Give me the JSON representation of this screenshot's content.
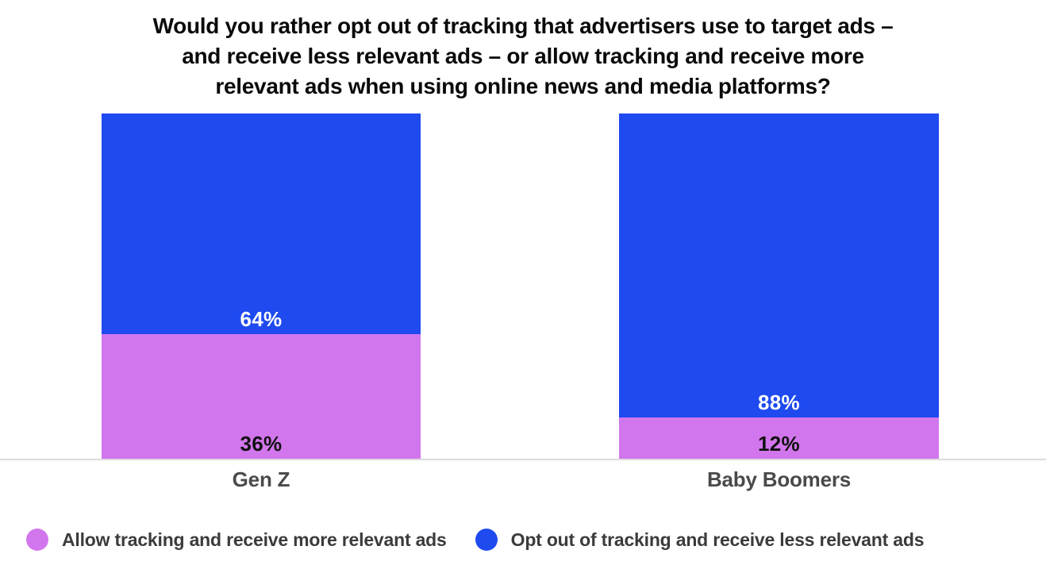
{
  "title": {
    "text": "Would you rather opt out of tracking that advertisers use to target ads – and receive less relevant ads – or allow tracking and receive more relevant ads when using online news and media platforms?",
    "lines": [
      "Would you rather opt out of tracking that advertisers use to target ads –",
      "and receive less relevant ads – or allow tracking and receive more",
      "relevant ads when using online news and media platforms?"
    ]
  },
  "chart_data": {
    "type": "bar",
    "stacked": true,
    "orientation": "vertical",
    "categories": [
      "Gen Z",
      "Baby Boomers"
    ],
    "series": [
      {
        "name": "Opt out of tracking and receive less relevant ads",
        "color": "#1E4AEF",
        "label_color": "#FFFFFF",
        "values": [
          64,
          88
        ]
      },
      {
        "name": "Allow tracking and receive more relevant ads",
        "color": "#D276ED",
        "label_color": "#111111",
        "values": [
          36,
          12
        ]
      }
    ],
    "value_suffix": "%",
    "ylim": [
      0,
      100
    ],
    "grid": false,
    "legend_position": "bottom",
    "value_label_position": "inside-bottom-of-segment"
  },
  "legend": {
    "items": [
      {
        "label": "Allow tracking and receive more relevant ads",
        "color": "#D276ED"
      },
      {
        "label": "Opt out of tracking and receive less relevant ads",
        "color": "#1E4AEF"
      }
    ]
  },
  "colors": {
    "background": "#FFFFFF",
    "title_text": "#0A0A0A",
    "category_label": "#4A4A4A",
    "legend_text": "#3B3B3B",
    "axis_line": "#DCDCDC",
    "blue": "#1E4AEF",
    "purple": "#D276ED"
  }
}
